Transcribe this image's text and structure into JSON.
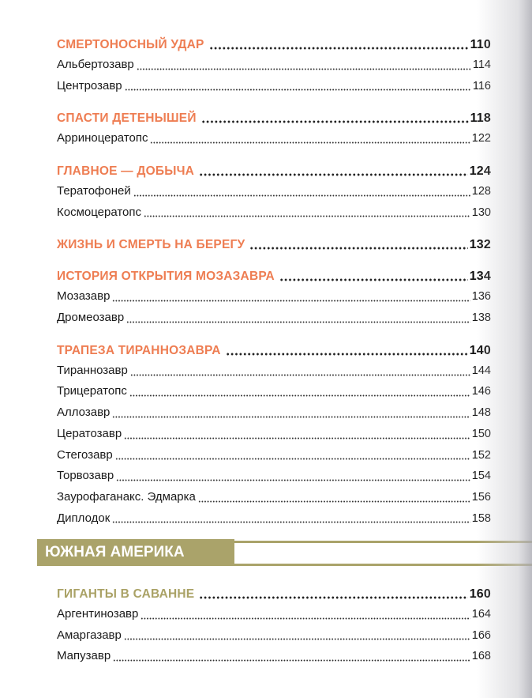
{
  "sections_top": [
    {
      "title": "СМЕРТОНОСНЫЙ УДАР",
      "page": "110",
      "entries": [
        {
          "name": "Альбертозавр",
          "page": "114"
        },
        {
          "name": "Центрозавр",
          "page": "116"
        }
      ]
    },
    {
      "title": "СПАСТИ ДЕТЕНЫШЕЙ",
      "page": "118",
      "entries": [
        {
          "name": "Арриноцератопс",
          "page": "122"
        }
      ]
    },
    {
      "title": "ГЛАВНОЕ — ДОБЫЧА",
      "page": "124",
      "entries": [
        {
          "name": "Тератофоней",
          "page": "128"
        },
        {
          "name": "Космоцератопс",
          "page": "130"
        }
      ]
    },
    {
      "title": "ЖИЗНЬ И СМЕРТЬ НА БЕРЕГУ",
      "page": "132",
      "entries": []
    },
    {
      "title": "ИСТОРИЯ ОТКРЫТИЯ МОЗАЗАВРА",
      "page": "134",
      "entries": [
        {
          "name": "Мозазавр",
          "page": "136"
        },
        {
          "name": "Дромеозавр",
          "page": "138"
        }
      ]
    },
    {
      "title": "ТРАПЕЗА ТИРАННОЗАВРА",
      "page": "140",
      "entries": [
        {
          "name": "Тираннозавр",
          "page": "144"
        },
        {
          "name": "Трицератопс",
          "page": "146"
        },
        {
          "name": "Аллозавр",
          "page": "148"
        },
        {
          "name": "Цератозавр",
          "page": "150"
        },
        {
          "name": "Стегозавр",
          "page": "152"
        },
        {
          "name": "Торвозавр",
          "page": "154"
        },
        {
          "name": "Заурофаганакс. Эдмарка",
          "page": "156"
        },
        {
          "name": "Диплодок",
          "page": "158"
        }
      ]
    }
  ],
  "chapter": {
    "title": "ЮЖНАЯ АМЕРИКА"
  },
  "sections_bottom": [
    {
      "title": "ГИГАНТЫ В САВАННЕ",
      "page": "160",
      "entries": [
        {
          "name": "Аргентинозавр",
          "page": "164"
        },
        {
          "name": "Амаргазавр",
          "page": "166"
        },
        {
          "name": "Мапузавр",
          "page": "168"
        }
      ]
    }
  ],
  "colors": {
    "section_orange": "#ee7d52",
    "chapter_olive": "#aaa36a"
  }
}
